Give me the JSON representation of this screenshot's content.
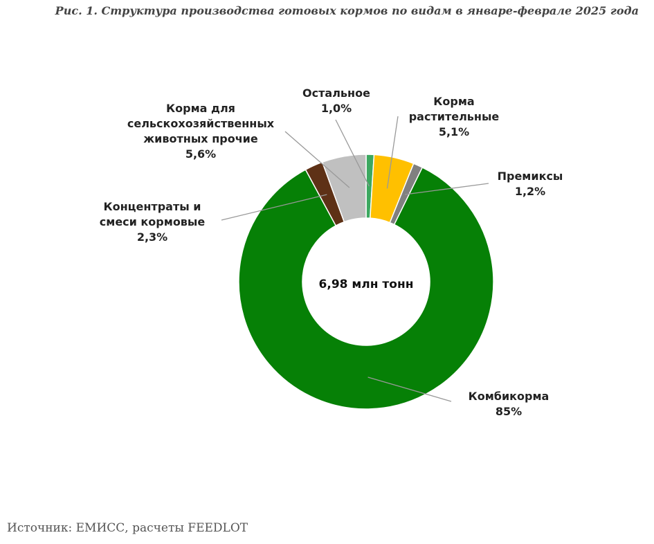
{
  "chart_data": {
    "type": "pie",
    "title": "Рис. 1. Структура производства готовых кормов по видам в январе-феврале 2025 года",
    "center_label": "6,98 млн тонн",
    "source": "Источник: ЕМИСС, расчеты FEEDLOT",
    "slices": [
      {
        "name": "Остальное",
        "value_label": "1,0%",
        "value": 1.0,
        "color": "#3CA860"
      },
      {
        "name": "Корма растительные",
        "name_lines": [
          "Корма",
          "растительные"
        ],
        "value_label": "5,1%",
        "value": 5.1,
        "color": "#FFC000"
      },
      {
        "name": "Премиксы",
        "value_label": "1,2%",
        "value": 1.2,
        "color": "#808080"
      },
      {
        "name": "Комбикорма",
        "value_label": "85%",
        "value": 85.0,
        "color": "#068006"
      },
      {
        "name": "Концентраты и смеси кормовые",
        "name_lines": [
          "Концентраты и",
          "смеси кормовые"
        ],
        "value_label": "2,3%",
        "value": 2.3,
        "color": "#5E3116"
      },
      {
        "name": "Корма для сельскохозяйственных животных прочие",
        "name_lines": [
          "Корма для",
          "сельскохозяйственных",
          "животных прочие"
        ],
        "value_label": "5,6%",
        "value": 5.6,
        "color": "#C0C0C0"
      }
    ]
  }
}
